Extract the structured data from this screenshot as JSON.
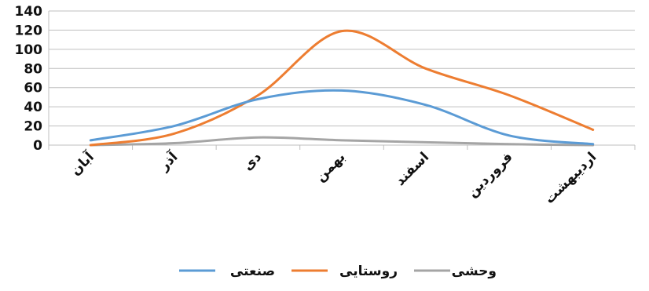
{
  "chart_data": {
    "type": "line",
    "smooth": true,
    "categories": [
      "آبان",
      "آذر",
      "دی",
      "بهمن",
      "اسفند",
      "فروردین",
      "اردیبهشت"
    ],
    "ylim": [
      0,
      140
    ],
    "yticks": [
      0,
      20,
      40,
      60,
      80,
      100,
      120,
      140
    ],
    "grid": true,
    "legend_position": "bottom",
    "series": [
      {
        "name": "صنعتی",
        "color": "#5B9BD5",
        "values": [
          5,
          20,
          48,
          57,
          42,
          10,
          1
        ]
      },
      {
        "name": "روستایی",
        "color": "#ED7D31",
        "values": [
          0,
          12,
          52,
          119,
          80,
          52,
          16
        ]
      },
      {
        "name": "وحشی",
        "color": "#A5A5A5",
        "values": [
          0,
          2,
          8,
          5,
          3,
          1,
          0
        ]
      }
    ]
  }
}
